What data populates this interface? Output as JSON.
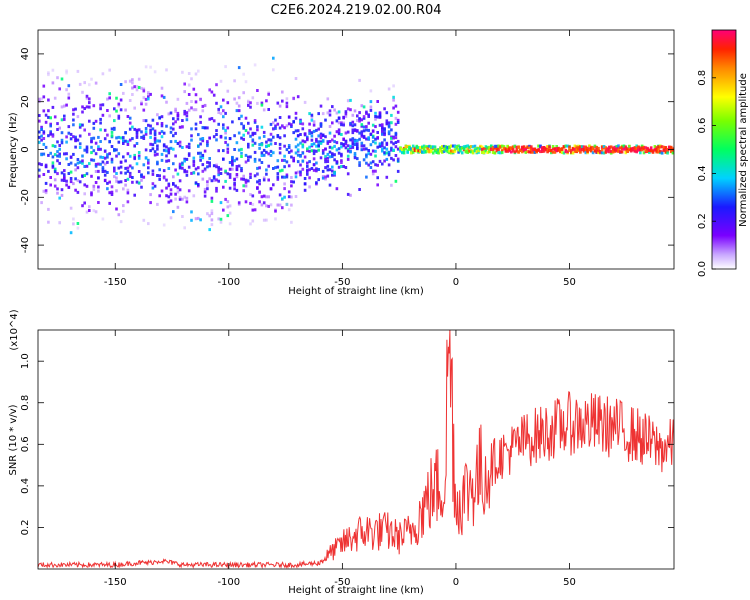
{
  "figure_title": "C2E6.2024.219.02.00.R04",
  "chart_data": [
    {
      "type": "heatmap",
      "name": "spectrogram",
      "xlabel": "Height of straight line (km)",
      "ylabel": "Frequency (Hz)",
      "xlim": [
        -184,
        96
      ],
      "ylim": [
        -50,
        50
      ],
      "xticks": [
        -150,
        -100,
        -50,
        0,
        50
      ],
      "xtick_labels": [
        "-150",
        "-100",
        "-50",
        "0",
        "50"
      ],
      "yticks": [
        -40,
        -20,
        0,
        20,
        40
      ],
      "ytick_labels": [
        "-40",
        "-20",
        "0",
        "20",
        "40"
      ],
      "colorbar": {
        "label": "Normalized spectral amplitude",
        "range": [
          0,
          1
        ],
        "ticks": [
          0.0,
          0.2,
          0.4,
          0.6,
          0.8
        ],
        "tick_labels": [
          "0.0",
          "0.2",
          "0.4",
          "0.6",
          "0.8"
        ]
      },
      "features": [
        {
          "x_range": [
            -184,
            -25
          ],
          "freq_center": 0,
          "freq_spread": 30,
          "peak_amplitude": 0.4,
          "note": "scattered broadband signal"
        },
        {
          "x_range": [
            -25,
            96
          ],
          "freq_center": 0,
          "freq_spread": 3,
          "peak_amplitude": 1.0,
          "note": "narrow strong line near 0 Hz"
        }
      ]
    },
    {
      "type": "line",
      "name": "snr",
      "xlabel": "Height of straight line (km)",
      "ylabel": "SNR (10 * v/v)",
      "y_multiplier": "(x10^4)",
      "xlim": [
        -184,
        96
      ],
      "ylim": [
        0,
        1.15
      ],
      "xticks": [
        -150,
        -100,
        -50,
        0,
        50
      ],
      "xtick_labels": [
        "-150",
        "-100",
        "-50",
        "0",
        "50"
      ],
      "yticks": [
        0.2,
        0.4,
        0.6,
        0.8,
        1.0
      ],
      "ytick_labels": [
        "0.2",
        "0.4",
        "0.6",
        "0.8",
        "1.0"
      ],
      "color": "#ee3333",
      "series": [
        {
          "name": "SNR",
          "x": [
            -184,
            -170,
            -160,
            -150,
            -140,
            -135,
            -130,
            -125,
            -120,
            -110,
            -100,
            -90,
            -80,
            -70,
            -60,
            -55,
            -50,
            -45,
            -40,
            -35,
            -30,
            -25,
            -20,
            -15,
            -10,
            -5,
            -3,
            0,
            5,
            10,
            15,
            20,
            25,
            30,
            40,
            50,
            60,
            70,
            80,
            90,
            96
          ],
          "y": [
            0.02,
            0.02,
            0.02,
            0.02,
            0.03,
            0.03,
            0.04,
            0.03,
            0.02,
            0.02,
            0.02,
            0.02,
            0.02,
            0.02,
            0.03,
            0.08,
            0.12,
            0.16,
            0.18,
            0.18,
            0.18,
            0.15,
            0.18,
            0.28,
            0.38,
            0.42,
            1.15,
            0.3,
            0.38,
            0.45,
            0.5,
            0.55,
            0.58,
            0.62,
            0.66,
            0.7,
            0.7,
            0.68,
            0.64,
            0.58,
            0.6
          ]
        }
      ]
    }
  ]
}
